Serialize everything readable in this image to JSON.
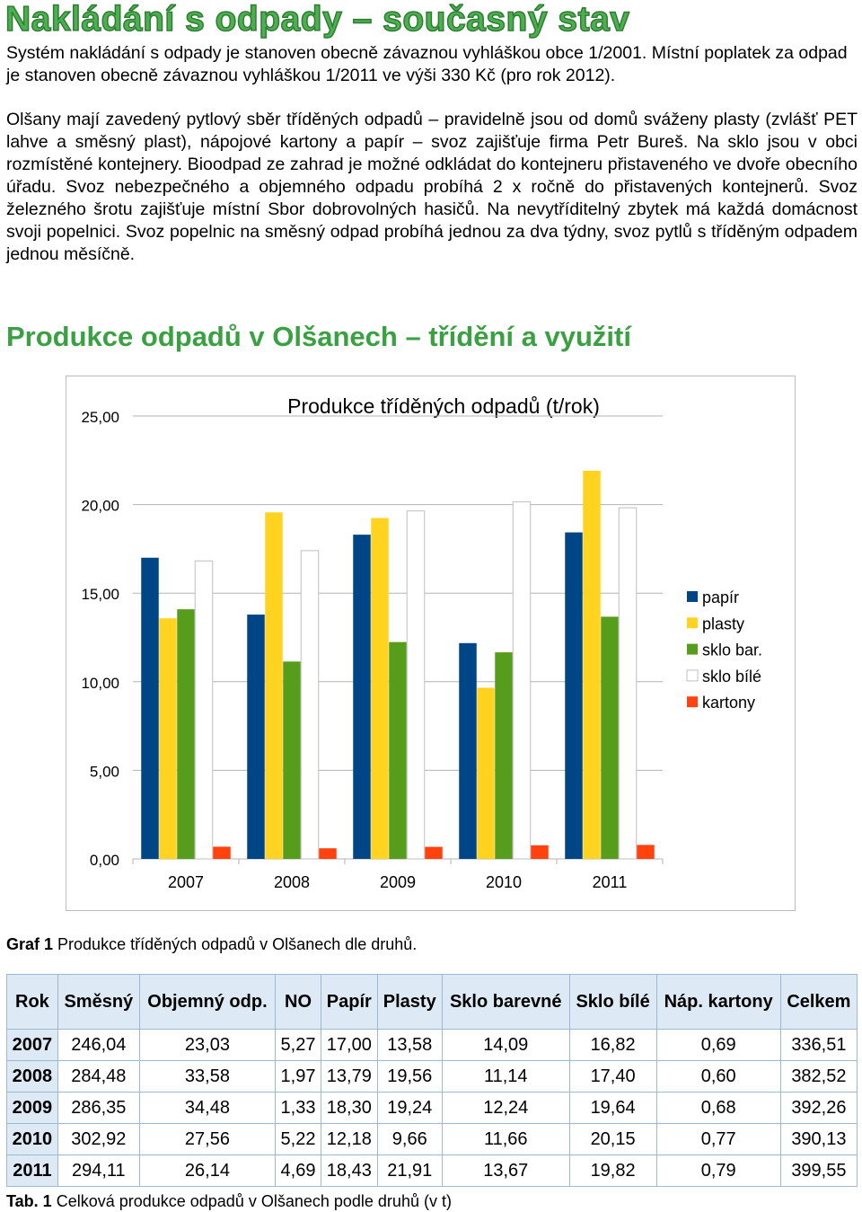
{
  "heading": "Nakládání s odpady – současný stav",
  "paragraph1": "Systém nakládání s odpady je stanoven obecně závaznou vyhláškou obce 1/2001. Místní poplatek za odpad je stanoven obecně závaznou vyhláškou 1/2011 ve výši 330 Kč (pro rok 2012).",
  "paragraph2": "Olšany mají zavedený pytlový sběr tříděných odpadů – pravidelně jsou od domů sváženy plasty (zvlášť PET lahve a směsný plast), nápojové kartony a papír – svoz zajišťuje firma Petr Bureš. Na sklo jsou v obci rozmístěné kontejnery. Bioodpad ze zahrad je možné odkládat do kontejneru přistaveného ve dvoře obecního úřadu. Svoz nebezpečného a objemného odpadu probíhá 2 x ročně do přistavených kontejnerů. Svoz železného šrotu zajišťuje místní Sbor dobrovolných hasičů. Na nevytříditelný zbytek má každá domácnost svoji popelnici. Svoz popelnic na směsný odpad probíhá jednou za dva týdny, svoz pytlů s tříděným odpadem jednou měsíčně.",
  "subheading": "Produkce odpadů v Olšanech – třídění a využití",
  "chart_data": {
    "type": "bar",
    "title": "Produkce tříděných odpadů (t/rok)",
    "categories": [
      "2007",
      "2008",
      "2009",
      "2010",
      "2011"
    ],
    "ylim": [
      0,
      25
    ],
    "yticks": [
      "0,00",
      "5,00",
      "10,00",
      "15,00",
      "20,00",
      "25,00"
    ],
    "grid": true,
    "legend_position": "right",
    "series": [
      {
        "name": "papír",
        "color": "#004586",
        "values": [
          17.0,
          13.79,
          18.3,
          12.18,
          18.43
        ]
      },
      {
        "name": "plasty",
        "color": "#ffd320",
        "values": [
          13.58,
          19.56,
          19.24,
          9.66,
          21.91
        ]
      },
      {
        "name": "sklo bar.",
        "color": "#579d1c",
        "values": [
          14.09,
          11.14,
          12.24,
          11.66,
          13.67
        ]
      },
      {
        "name": "sklo bílé",
        "color": "#ffffff",
        "values": [
          16.82,
          17.4,
          19.64,
          20.15,
          19.82
        ]
      },
      {
        "name": "kartony",
        "color": "#ff420e",
        "values": [
          0.69,
          0.6,
          0.68,
          0.77,
          0.79
        ]
      }
    ]
  },
  "caption1": {
    "bold": "Graf 1",
    "text": " Produkce tříděných odpadů v Olšanech dle druhů."
  },
  "table": {
    "headers": [
      "Rok",
      "Směsný",
      "Objemný odp.",
      "NO",
      "Papír",
      "Plasty",
      "Sklo barevné",
      "Sklo bílé",
      "Náp. kartony",
      "Celkem"
    ],
    "rows": [
      [
        "2007",
        "246,04",
        "23,03",
        "5,27",
        "17,00",
        "13,58",
        "14,09",
        "16,82",
        "0,69",
        "336,51"
      ],
      [
        "2008",
        "284,48",
        "33,58",
        "1,97",
        "13,79",
        "19,56",
        "11,14",
        "17,40",
        "0,60",
        "382,52"
      ],
      [
        "2009",
        "286,35",
        "34,48",
        "1,33",
        "18,30",
        "19,24",
        "12,24",
        "19,64",
        "0,68",
        "392,26"
      ],
      [
        "2010",
        "302,92",
        "27,56",
        "5,22",
        "12,18",
        "9,66",
        "11,66",
        "20,15",
        "0,77",
        "390,13"
      ],
      [
        "2011",
        "294,11",
        "26,14",
        "4,69",
        "18,43",
        "21,91",
        "13,67",
        "19,82",
        "0,79",
        "399,55"
      ]
    ]
  },
  "caption2": {
    "bold": "Tab. 1",
    "text": " Celková produkce odpadů v Olšanech podle druhů (v t)"
  }
}
